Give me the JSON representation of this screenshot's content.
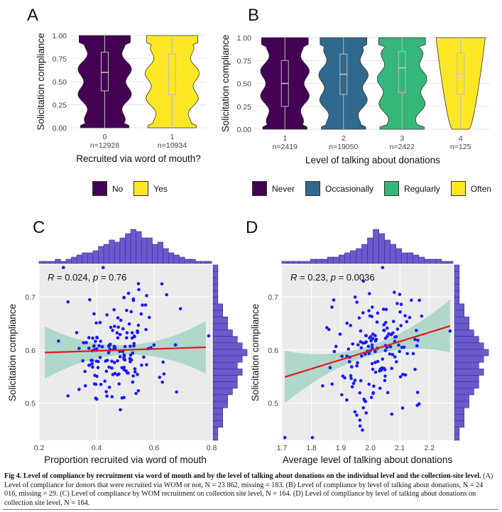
{
  "panels": {
    "a": "A",
    "b": "B",
    "c": "C",
    "d": "D"
  },
  "chart_data": [
    {
      "panel": "A",
      "type": "violin",
      "xlabel": "Recruited via word of mouth?",
      "ylabel": "Solicitation compliance",
      "ylim": [
        0,
        1
      ],
      "yticks": [
        "0.00",
        "0.25",
        "0.50",
        "0.75",
        "1.00"
      ],
      "categories": [
        "0",
        "1"
      ],
      "n_labels": [
        "n=12928",
        "n=10934"
      ],
      "series": [
        {
          "name": "No",
          "color": "#440154",
          "median": 0.6,
          "q1": 0.4,
          "q3": 0.82
        },
        {
          "name": "Yes",
          "color": "#FDE725",
          "median": 0.57,
          "q1": 0.36,
          "q3": 0.8
        }
      ],
      "legend": {
        "position": "bottom",
        "items": [
          "No",
          "Yes"
        ]
      }
    },
    {
      "panel": "B",
      "type": "violin",
      "xlabel": "Level of talking about donations",
      "ylabel": "Solicitation compliance",
      "ylim": [
        0,
        1
      ],
      "yticks": [
        "0.00",
        "0.25",
        "0.50",
        "0.75",
        "1.00"
      ],
      "categories": [
        "1",
        "2",
        "3",
        "4"
      ],
      "n_labels": [
        "n=2419",
        "n=19050",
        "n=2422",
        "n=125"
      ],
      "series": [
        {
          "name": "Never",
          "color": "#440154",
          "median": 0.5,
          "q1": 0.25,
          "q3": 0.75
        },
        {
          "name": "Occasionally",
          "color": "#31688E",
          "median": 0.6,
          "q1": 0.38,
          "q3": 0.82
        },
        {
          "name": "Regularly",
          "color": "#35B779",
          "median": 0.67,
          "q1": 0.4,
          "q3": 0.85
        },
        {
          "name": "Often",
          "color": "#FDE725",
          "median": 0.6,
          "q1": 0.38,
          "q3": 0.83
        }
      ],
      "legend": {
        "position": "bottom",
        "items": [
          "Never",
          "Occasionally",
          "Regularly",
          "Often"
        ]
      }
    },
    {
      "panel": "C",
      "type": "scatter",
      "xlabel": "Proportion recruited via word of mouth",
      "ylabel": "Solicitation compliance",
      "xlim": [
        0.2,
        0.8
      ],
      "ylim": [
        0.43,
        0.76
      ],
      "xticks": [
        "0.2",
        "0.4",
        "0.6",
        "0.8"
      ],
      "yticks": [
        "0.5",
        "0.6",
        "0.7"
      ],
      "annotation": {
        "r_label": "R",
        "r_text": " = 0.024, ",
        "p_label": "p",
        "p_text": " = 0.76"
      },
      "fit": {
        "x": [
          0.22,
          0.78
        ],
        "y": [
          0.595,
          0.605
        ]
      },
      "n_points": 164,
      "marginal_x_hist": [
        1,
        1,
        1,
        2,
        1,
        2,
        3,
        4,
        5,
        5,
        6,
        8,
        9,
        11,
        10,
        12,
        14,
        16,
        15,
        12,
        12,
        9,
        10,
        7,
        5,
        4,
        3,
        2,
        2,
        1,
        1,
        1
      ],
      "marginal_y_hist": [
        1,
        1,
        1,
        1,
        1,
        1,
        2,
        2,
        3,
        3,
        4,
        5,
        6,
        7,
        6,
        5,
        6,
        5,
        5,
        4,
        3,
        3,
        2,
        2,
        2,
        1,
        1
      ],
      "point_color": "#1a1aff",
      "fit_color": "#e31a1c",
      "band_color": "#a4d3c7"
    },
    {
      "panel": "D",
      "type": "scatter",
      "xlabel": "Average level of talking about donations",
      "ylabel": "Solicitation compliance",
      "xlim": [
        1.7,
        2.28
      ],
      "ylim": [
        0.43,
        0.76
      ],
      "xticks": [
        "1.7",
        "1.8",
        "1.9",
        "2.0",
        "2.1",
        "2.2"
      ],
      "yticks": [
        "0.5",
        "0.6",
        "0.7"
      ],
      "annotation": {
        "r_label": "R",
        "r_text": " = 0.23, ",
        "p_label": "p",
        "p_text": " = 0.0036"
      },
      "fit": {
        "x": [
          1.71,
          2.27
        ],
        "y": [
          0.549,
          0.645
        ]
      },
      "n_points": 164,
      "marginal_x_hist": [
        1,
        1,
        1,
        1,
        1,
        2,
        2,
        2,
        3,
        3,
        4,
        5,
        6,
        7,
        9,
        12,
        16,
        14,
        11,
        9,
        7,
        5,
        5,
        4,
        3,
        2,
        2,
        2,
        1,
        1
      ],
      "marginal_y_hist": [
        1,
        1,
        1,
        1,
        1,
        1,
        2,
        2,
        3,
        3,
        4,
        5,
        6,
        7,
        6,
        5,
        6,
        5,
        5,
        4,
        3,
        3,
        2,
        2,
        2,
        1,
        1
      ],
      "point_color": "#1a1aff",
      "fit_color": "#e31a1c",
      "band_color": "#a4d3c7"
    }
  ],
  "caption": {
    "bold": "Fig 4. Level of compliance by recruitment via word of mouth and by the level of talking about donations on the individual level and the collection-site level.",
    "text": " (A) Level of compliance for donors that were recruited via WOM or not, N = 23 862, missing = 183. (B) Level of compliance by level of talking about donations, N = 24 016, missing = 29. (C) Level of compliance by WOM recruitment on collection site level, N = 164. (D) Level of compliance by level of talking about donations on collection site level, N = 164."
  }
}
